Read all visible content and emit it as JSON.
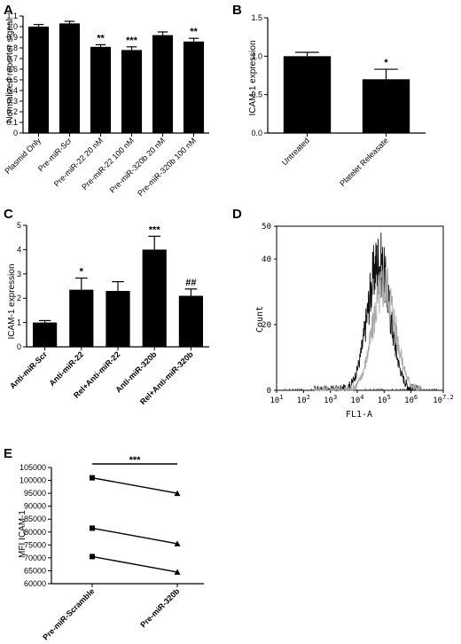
{
  "chart_data": [
    {
      "panel": "A",
      "type": "bar",
      "ylabel": "Normalized reporter signal",
      "ylim": [
        0,
        1.1
      ],
      "yticks": [
        "0",
        "0.1",
        "0.2",
        "0.3",
        "0.4",
        "0.5",
        "0.6",
        "0.7",
        "0.8",
        "0.9",
        "1.0",
        "1.1"
      ],
      "categories": [
        "Plasmid Only",
        "Pre-miR-Scr",
        "Pre-miR-22 20 nM",
        "Pre-miR-22 100 nM",
        "Pre-miR-320b 20 nM",
        "Pre-miR-320b 100 nM"
      ],
      "values": [
        1.0,
        1.03,
        0.81,
        0.78,
        0.92,
        0.86
      ],
      "errors": [
        0.02,
        0.02,
        0.02,
        0.03,
        0.03,
        0.03
      ],
      "annotations": [
        "",
        "",
        "**",
        "***",
        "",
        "**"
      ]
    },
    {
      "panel": "B",
      "type": "bar",
      "ylabel": "ICAM-1 expression",
      "ylim": [
        0,
        1.5
      ],
      "yticks": [
        "0.0",
        "0.5",
        "1.0",
        "1.5"
      ],
      "categories": [
        "Untreated",
        "Platelet Releasate"
      ],
      "values": [
        1.0,
        0.7
      ],
      "errors": [
        0.05,
        0.13
      ],
      "annotations": [
        "",
        "*"
      ]
    },
    {
      "panel": "C",
      "type": "bar",
      "ylabel": "ICAM-1 expression",
      "ylim": [
        0,
        5
      ],
      "yticks": [
        "0",
        "1",
        "2",
        "3",
        "4",
        "5"
      ],
      "categories": [
        "Anti-miR-Scr",
        "Anti-miR-22",
        "Rel+Anti-miR-22",
        "Anti-miR-320b",
        "Rel+Anti-miR-320b"
      ],
      "values": [
        1.0,
        2.35,
        2.3,
        4.0,
        2.1
      ],
      "errors": [
        0.08,
        0.48,
        0.38,
        0.55,
        0.28
      ],
      "annotations": [
        "",
        "*",
        "",
        "***",
        "##"
      ]
    },
    {
      "panel": "D",
      "type": "line",
      "xlabel": "FL1-A",
      "ylabel": "Count",
      "xlim": [
        1,
        7.2
      ],
      "ylim": [
        0,
        50
      ],
      "yticks": [
        "0",
        "20",
        "40",
        "50"
      ],
      "xticks": [
        "10^1",
        "10^2",
        "10^3",
        "10^4",
        "10^5",
        "10^6",
        "10^7.2"
      ],
      "series": [
        {
          "color": "#111111",
          "peak_x": 4.8,
          "peak_count": 46
        },
        {
          "color": "#a8a8a8",
          "peak_x": 5.0,
          "peak_count": 38
        }
      ]
    },
    {
      "panel": "E",
      "type": "line",
      "ylabel": "MFI ICAM-1",
      "ylim": [
        60000,
        105000
      ],
      "yticks": [
        "60000",
        "65000",
        "70000",
        "75000",
        "80000",
        "85000",
        "90000",
        "95000",
        "100000",
        "105000"
      ],
      "categories": [
        "Pre-miR-Scramble",
        "Pre-miR-320b"
      ],
      "pairs": [
        [
          101000,
          95000
        ],
        [
          81500,
          75500
        ],
        [
          70500,
          64500
        ]
      ],
      "annotation": "***"
    }
  ],
  "panel_labels": [
    "A",
    "B",
    "C",
    "D",
    "E"
  ]
}
